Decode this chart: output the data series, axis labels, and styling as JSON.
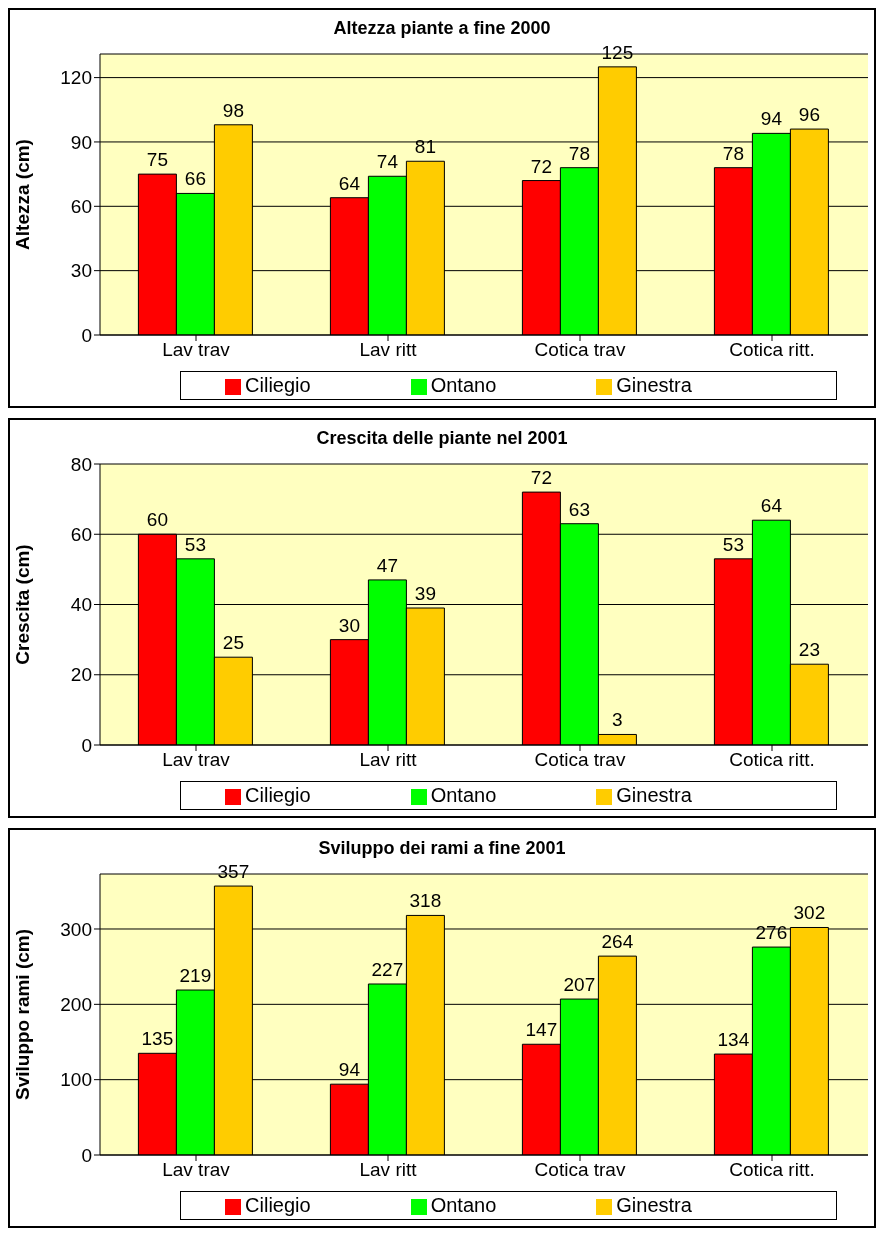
{
  "chart_data": [
    {
      "type": "bar",
      "title": "Altezza piante a fine 2000",
      "ylabel": "Altezza (cm)",
      "categories": [
        "Lav trav",
        "Lav ritt",
        "Cotica trav",
        "Cotica ritt."
      ],
      "series": [
        {
          "name": "Ciliegio",
          "color": "#ff0000",
          "values": [
            75,
            64,
            72,
            78
          ]
        },
        {
          "name": "Ontano",
          "color": "#00ff00",
          "values": [
            66,
            74,
            78,
            94
          ]
        },
        {
          "name": "Ginestra",
          "color": "#ffcc00",
          "values": [
            98,
            81,
            125,
            96
          ]
        }
      ],
      "ylim": [
        0,
        131
      ],
      "yticks": [
        0,
        30,
        60,
        90,
        120
      ],
      "grid": "y",
      "legend": "bottom",
      "data_labels": true
    },
    {
      "type": "bar",
      "title": "Crescita delle piante nel 2001",
      "ylabel": "Crescita (cm)",
      "categories": [
        "Lav trav",
        "Lav ritt",
        "Cotica trav",
        "Cotica ritt."
      ],
      "series": [
        {
          "name": "Ciliegio",
          "color": "#ff0000",
          "values": [
            60,
            30,
            72,
            53
          ]
        },
        {
          "name": "Ontano",
          "color": "#00ff00",
          "values": [
            53,
            47,
            63,
            64
          ]
        },
        {
          "name": "Ginestra",
          "color": "#ffcc00",
          "values": [
            25,
            39,
            3,
            23
          ]
        }
      ],
      "ylim": [
        0,
        80
      ],
      "yticks": [
        0,
        20,
        40,
        60,
        80
      ],
      "grid": "y",
      "legend": "bottom",
      "data_labels": true
    },
    {
      "type": "bar",
      "title": "Sviluppo dei rami a fine 2001",
      "ylabel": "Sviluppo rami (cm)",
      "categories": [
        "Lav trav",
        "Lav ritt",
        "Cotica trav",
        "Cotica ritt."
      ],
      "series": [
        {
          "name": "Ciliegio",
          "color": "#ff0000",
          "values": [
            135,
            94,
            147,
            134
          ]
        },
        {
          "name": "Ontano",
          "color": "#00ff00",
          "values": [
            219,
            227,
            207,
            276
          ]
        },
        {
          "name": "Ginestra",
          "color": "#ffcc00",
          "values": [
            357,
            318,
            264,
            302
          ]
        }
      ],
      "ylim": [
        0,
        373
      ],
      "yticks": [
        0,
        100,
        200,
        300
      ],
      "grid": "y",
      "legend": "bottom",
      "data_labels": true
    }
  ]
}
